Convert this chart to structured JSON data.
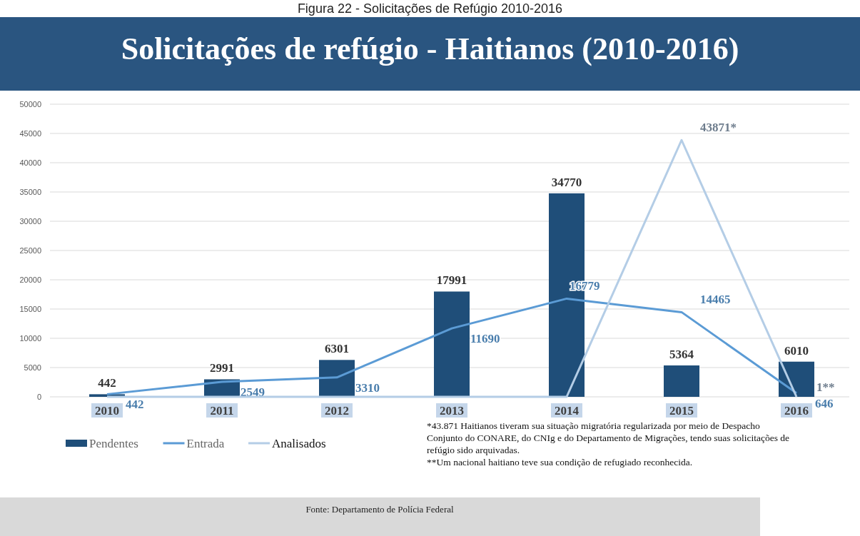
{
  "chart_data": {
    "type": "bar",
    "title": "Solicitações de refúgio - Haitianos (2010-2016)",
    "subtitle": "Figura 22 - Solicitações de Refúgio 2010-2016",
    "categories": [
      "2010",
      "2011",
      "2012",
      "2013",
      "2014",
      "2015",
      "2016"
    ],
    "series": [
      {
        "name": "Pendentes",
        "color": "#1f4e79",
        "values": [
          442,
          2991,
          6301,
          17991,
          34770,
          5364,
          6010
        ],
        "value_labels": [
          "442",
          "2991",
          "6301",
          "17991",
          "34770",
          "5364",
          "6010"
        ]
      },
      {
        "name": "Entrada",
        "type": "line",
        "color": "#5b9bd5",
        "values": [
          442,
          2549,
          3310,
          11690,
          16779,
          14465,
          646
        ],
        "value_labels": [
          "442",
          "2549",
          "3310",
          "11690",
          "16779",
          "14465",
          "646"
        ]
      },
      {
        "name": "Analisados",
        "type": "line",
        "color": "#b4cde6",
        "values": [
          0,
          0,
          0,
          0,
          0,
          43871,
          1
        ],
        "value_labels": [
          null,
          null,
          null,
          null,
          null,
          "43871*",
          "1**"
        ]
      }
    ],
    "ylim": [
      0,
      50000
    ],
    "yticks": [
      0,
      5000,
      10000,
      15000,
      20000,
      25000,
      30000,
      35000,
      40000,
      45000,
      50000
    ],
    "grid": "y",
    "legend": "bottom left",
    "marker": "none",
    "line_style": "solid",
    "annotations": [
      "*43.871 Haitianos tiveram sua situação migratória regularizada por meio de Despacho Conjunto do CONARE, do CNIg e do Departamento de Migrações, tendo suas solicitações de refúgio sido arquivadas.",
      "**Um nacional haitiano teve sua condição de refugiado reconhecida.",
      "Fonte: Departamento de Polícia Federal"
    ]
  }
}
